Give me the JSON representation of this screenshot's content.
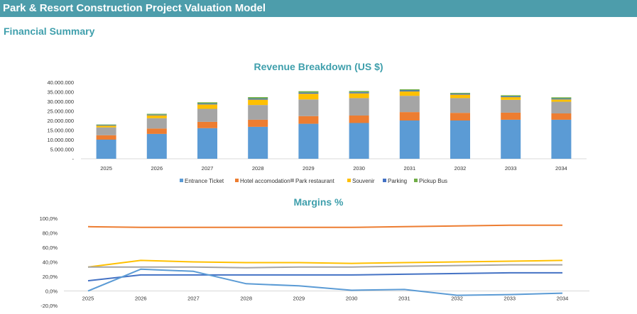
{
  "page": {
    "title": "Park & Resort Construction Project Valuation Model",
    "subtitle": "Financial Summary",
    "header_color": "#4d9dab"
  },
  "chart_data": [
    {
      "type": "bar",
      "stacked": true,
      "title": "Revenue Breakdown (US $)",
      "categories": [
        "2025",
        "2026",
        "2027",
        "2028",
        "2029",
        "2030",
        "2031",
        "2032",
        "2033",
        "2034"
      ],
      "ylim": [
        0,
        40000000
      ],
      "ytick_labels": [
        "-",
        "5.000.000",
        "10.000.000",
        "15.000.000",
        "20.000.000",
        "25.000.000",
        "30.000.000",
        "35.000.000",
        "40.000.000"
      ],
      "grid": false,
      "legend": "bottom",
      "series": [
        {
          "name": "Entrance Ticket",
          "color": "#5b9bd5",
          "values": [
            10000000,
            13000000,
            16000000,
            16700000,
            18300000,
            18700000,
            20000000,
            20000000,
            20400000,
            20400000
          ]
        },
        {
          "name": "Hotel accomodation",
          "color": "#ed7d31",
          "values": [
            2300000,
            2800000,
            3300000,
            3700000,
            4000000,
            3900000,
            4400000,
            4000000,
            3700000,
            3300000
          ]
        },
        {
          "name": "Park restaurant",
          "color": "#a5a5a5",
          "values": [
            4100000,
            5400000,
            6800000,
            7700000,
            8700000,
            9100000,
            8500000,
            7700000,
            6700000,
            6100000
          ]
        },
        {
          "name": "Souvenir",
          "color": "#ffc000",
          "values": [
            900000,
            1500000,
            2300000,
            2800000,
            3000000,
            2500000,
            2300000,
            1800000,
            1400000,
            1200000
          ]
        },
        {
          "name": "Parking",
          "color": "#4472c4",
          "values": [
            300000,
            350000,
            450000,
            550000,
            550000,
            550000,
            550000,
            500000,
            450000,
            450000
          ]
        },
        {
          "name": "Pickup Bus",
          "color": "#70ad47",
          "values": [
            300000,
            450000,
            650000,
            750000,
            750000,
            650000,
            550000,
            450000,
            550000,
            650000
          ]
        }
      ]
    },
    {
      "type": "line",
      "title": "Margins %",
      "categories": [
        "2025",
        "2026",
        "2027",
        "2028",
        "2029",
        "2030",
        "2031",
        "2032",
        "2033",
        "2034"
      ],
      "ylim": [
        -20,
        100
      ],
      "ytick_labels": [
        "-20,0%",
        "0,0%",
        "20,0%",
        "40,0%",
        "60,0%",
        "80,0%",
        "100,0%"
      ],
      "grid": false,
      "legend": "none",
      "series": [
        {
          "color": "#ed7d31",
          "values": [
            88.5,
            87.5,
            87.5,
            87.5,
            87.5,
            87.5,
            88.5,
            89.5,
            90.5,
            90.5
          ]
        },
        {
          "color": "#ffc000",
          "values": [
            33,
            42,
            40,
            39,
            39,
            38,
            39,
            40,
            41,
            42
          ]
        },
        {
          "color": "#a5a5a5",
          "values": [
            33,
            33,
            33,
            32,
            33,
            33,
            34,
            35,
            36,
            36
          ]
        },
        {
          "color": "#4472c4",
          "values": [
            14,
            22,
            22,
            22,
            22,
            22,
            23,
            24,
            25,
            25
          ]
        },
        {
          "color": "#5b9bd5",
          "values": [
            0,
            30,
            27,
            10,
            7,
            1,
            2,
            -6,
            -5,
            -3
          ]
        }
      ]
    }
  ]
}
